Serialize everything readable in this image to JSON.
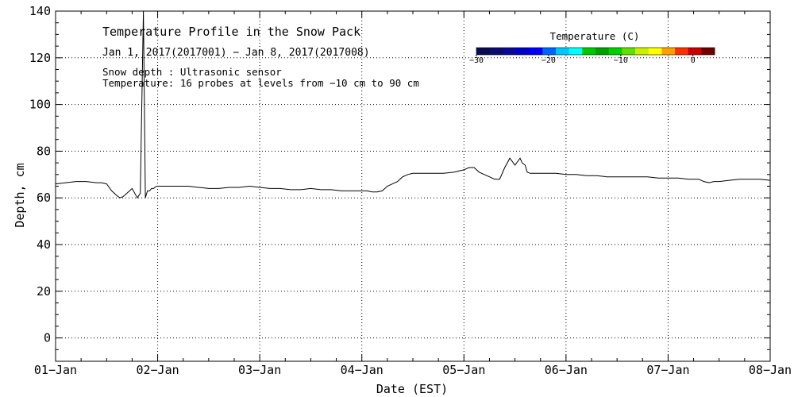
{
  "chart_data": {
    "type": "line",
    "title": "Temperature Profile in the Snow Pack",
    "subtitle": "Jan  1, 2017(2017001) − Jan  8, 2017(2017008)",
    "notes": [
      "Snow depth : Ultrasonic sensor",
      "Temperature: 16 probes at levels from −10 cm to 90 cm"
    ],
    "xlabel": "Date (EST)",
    "ylabel": "Depth, cm",
    "xlim": [
      0,
      7
    ],
    "ylim": [
      -10,
      140
    ],
    "grid": true,
    "x_ticks": [
      {
        "value": 0,
        "label": "01−Jan"
      },
      {
        "value": 1,
        "label": "02−Jan"
      },
      {
        "value": 2,
        "label": "03−Jan"
      },
      {
        "value": 3,
        "label": "04−Jan"
      },
      {
        "value": 4,
        "label": "05−Jan"
      },
      {
        "value": 5,
        "label": "06−Jan"
      },
      {
        "value": 6,
        "label": "07−Jan"
      },
      {
        "value": 7,
        "label": "08−Jan"
      }
    ],
    "y_ticks": [
      {
        "value": 0,
        "label": "0"
      },
      {
        "value": 20,
        "label": "20"
      },
      {
        "value": 40,
        "label": "40"
      },
      {
        "value": 60,
        "label": "60"
      },
      {
        "value": 80,
        "label": "80"
      },
      {
        "value": 100,
        "label": "100"
      },
      {
        "value": 120,
        "label": "120"
      },
      {
        "value": 140,
        "label": "140"
      }
    ],
    "series": [
      {
        "name": "Snow depth",
        "color": "#000000",
        "x": [
          0,
          0.1,
          0.2,
          0.3,
          0.4,
          0.45,
          0.5,
          0.55,
          0.6,
          0.63,
          0.66,
          0.7,
          0.75,
          0.8,
          0.83,
          0.86,
          0.88,
          0.9,
          0.92,
          0.94,
          0.96,
          0.99,
          1.0,
          1.1,
          1.2,
          1.3,
          1.4,
          1.5,
          1.6,
          1.7,
          1.8,
          1.9,
          2.0,
          2.1,
          2.2,
          2.3,
          2.4,
          2.5,
          2.6,
          2.7,
          2.8,
          2.9,
          3.0,
          3.05,
          3.1,
          3.15,
          3.2,
          3.25,
          3.3,
          3.35,
          3.4,
          3.45,
          3.5,
          3.6,
          3.7,
          3.8,
          3.9,
          4.0,
          4.05,
          4.1,
          4.15,
          4.2,
          4.25,
          4.3,
          4.35,
          4.4,
          4.45,
          4.5,
          4.55,
          4.57,
          4.6,
          4.62,
          4.65,
          4.7,
          4.8,
          4.9,
          5.0,
          5.1,
          5.2,
          5.3,
          5.4,
          5.5,
          5.6,
          5.7,
          5.8,
          5.9,
          6.0,
          6.1,
          6.2,
          6.3,
          6.35,
          6.4,
          6.45,
          6.5,
          6.6,
          6.7,
          6.8,
          6.9,
          7.0
        ],
        "y": [
          66,
          66.5,
          67,
          67,
          66.5,
          66.5,
          66,
          63,
          61,
          60,
          60.5,
          62,
          64,
          60,
          62,
          140,
          60,
          63,
          63,
          64,
          64,
          65,
          65,
          65,
          65,
          65,
          64.5,
          64,
          64,
          64.5,
          64.5,
          65,
          64.5,
          64,
          64,
          63.5,
          63.5,
          64,
          63.5,
          63.5,
          63,
          63,
          63,
          63,
          62.5,
          62.5,
          63,
          65,
          66,
          67,
          69,
          70,
          70.5,
          70.5,
          70.5,
          70.5,
          71,
          72,
          73,
          73,
          71,
          70,
          69,
          68,
          68,
          73,
          77,
          74,
          77,
          75,
          74,
          71,
          70.5,
          70.5,
          70.5,
          70.5,
          70,
          70,
          69.5,
          69.5,
          69,
          69,
          69,
          69,
          69,
          68.5,
          68.5,
          68.5,
          68,
          68,
          67,
          66.5,
          67,
          67,
          67.5,
          68,
          68,
          68,
          67.5
        ]
      }
    ],
    "colorbar": {
      "label": "Temperature (C)",
      "min": -30,
      "max": 3,
      "ticks": [
        {
          "value": -30,
          "label": "−30"
        },
        {
          "value": -20,
          "label": "−20"
        },
        {
          "value": -10,
          "label": "−10"
        },
        {
          "value": 0,
          "label": "0"
        }
      ],
      "colors": [
        "#0a0a50",
        "#0c0c6e",
        "#0a0a96",
        "#0000c8",
        "#0000ff",
        "#0064ff",
        "#00c8ff",
        "#00ffff",
        "#00c800",
        "#00a000",
        "#00d000",
        "#60e000",
        "#c8f000",
        "#ffff00",
        "#ffa000",
        "#ff3000",
        "#c80000",
        "#700000"
      ]
    }
  }
}
